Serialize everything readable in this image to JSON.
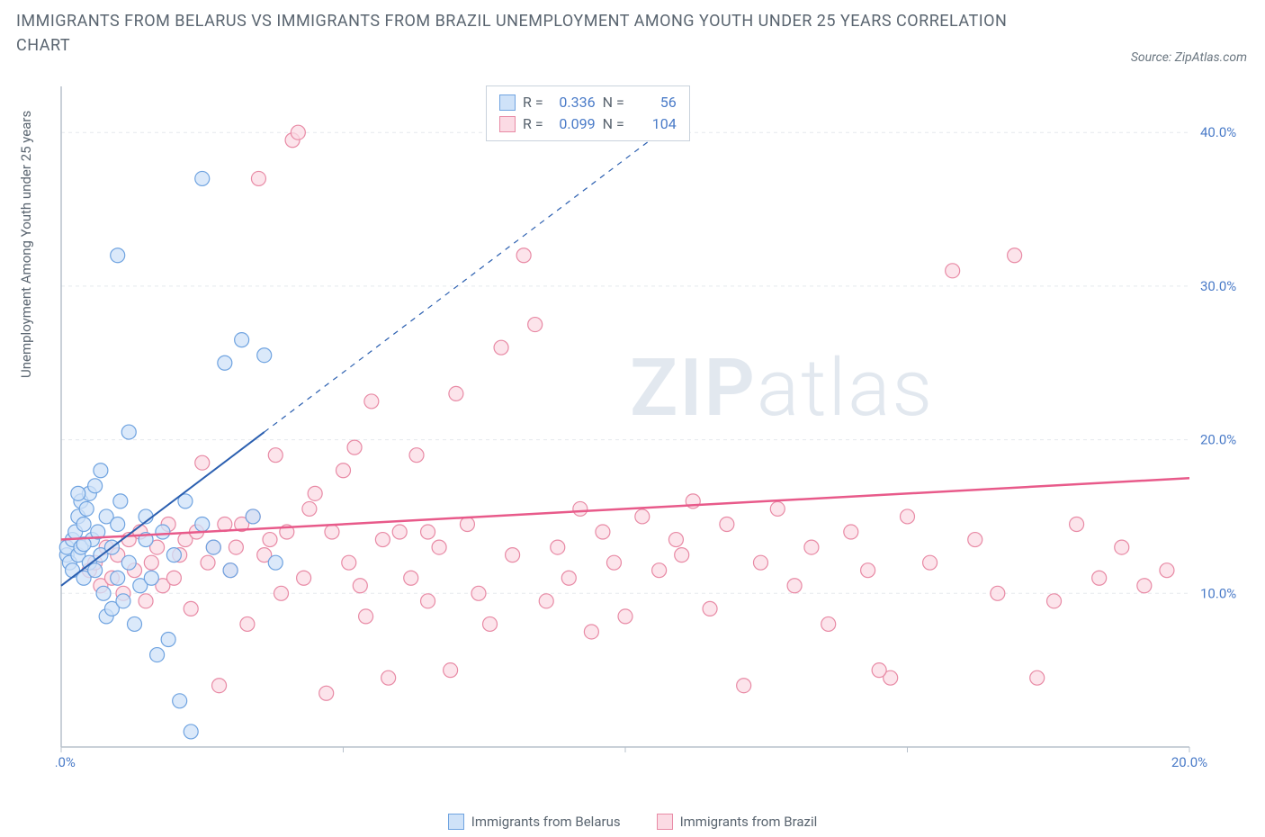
{
  "title": "IMMIGRANTS FROM BELARUS VS IMMIGRANTS FROM BRAZIL UNEMPLOYMENT AMONG YOUTH UNDER 25 YEARS CORRELATION CHART",
  "source": "Source: ZipAtlas.com",
  "y_axis_label": "Unemployment Among Youth under 25 years",
  "watermark_a": "ZIP",
  "watermark_b": "atlas",
  "chart": {
    "type": "scatter",
    "xlim": [
      0,
      20
    ],
    "ylim": [
      0,
      43
    ],
    "x_ticks": [
      0,
      5,
      10,
      15,
      20
    ],
    "x_tick_labels": [
      "0.0%",
      "",
      "",
      "",
      "20.0%"
    ],
    "y_ticks": [
      10,
      20,
      30,
      40
    ],
    "y_tick_labels": [
      "10.0%",
      "20.0%",
      "30.0%",
      "40.0%"
    ],
    "grid_color": "#e5e9ee",
    "axis_color": "#b7c0cb",
    "background": "#ffffff",
    "marker_radius": 8,
    "marker_stroke_width": 1.2,
    "series": [
      {
        "name": "Immigrants from Belarus",
        "fill": "#cfe2f8",
        "stroke": "#6fa3e0",
        "swatch_fill": "#cfe2f8",
        "swatch_stroke": "#6fa3e0",
        "r": "0.336",
        "n": "56",
        "trend": {
          "x1": 0,
          "y1": 10.5,
          "x2": 3.6,
          "y2": 20.5,
          "dashed_x2": 10.8,
          "dashed_y2": 40.5,
          "color": "#2b5fb0",
          "width": 2
        },
        "points": [
          [
            0.1,
            12.5
          ],
          [
            0.1,
            13.0
          ],
          [
            0.15,
            12.0
          ],
          [
            0.2,
            11.5
          ],
          [
            0.2,
            13.5
          ],
          [
            0.25,
            14.0
          ],
          [
            0.3,
            12.5
          ],
          [
            0.3,
            15.0
          ],
          [
            0.35,
            13.0
          ],
          [
            0.35,
            16.0
          ],
          [
            0.4,
            11.0
          ],
          [
            0.4,
            14.5
          ],
          [
            0.45,
            15.5
          ],
          [
            0.5,
            12.0
          ],
          [
            0.5,
            16.5
          ],
          [
            0.55,
            13.5
          ],
          [
            0.6,
            11.5
          ],
          [
            0.6,
            17.0
          ],
          [
            0.65,
            14.0
          ],
          [
            0.7,
            12.5
          ],
          [
            0.7,
            18.0
          ],
          [
            0.75,
            10.0
          ],
          [
            0.8,
            15.0
          ],
          [
            0.8,
            8.5
          ],
          [
            0.9,
            9.0
          ],
          [
            0.9,
            13.0
          ],
          [
            1.0,
            11.0
          ],
          [
            1.0,
            14.5
          ],
          [
            1.05,
            16.0
          ],
          [
            1.1,
            9.5
          ],
          [
            1.2,
            12.0
          ],
          [
            1.2,
            20.5
          ],
          [
            1.3,
            8.0
          ],
          [
            1.4,
            10.5
          ],
          [
            1.5,
            13.5
          ],
          [
            1.5,
            15.0
          ],
          [
            1.6,
            11.0
          ],
          [
            1.7,
            6.0
          ],
          [
            1.8,
            14.0
          ],
          [
            1.9,
            7.0
          ],
          [
            2.0,
            12.5
          ],
          [
            2.1,
            3.0
          ],
          [
            2.2,
            16.0
          ],
          [
            2.3,
            1.0
          ],
          [
            2.5,
            14.5
          ],
          [
            2.7,
            13.0
          ],
          [
            2.9,
            25.0
          ],
          [
            3.0,
            11.5
          ],
          [
            3.2,
            26.5
          ],
          [
            3.4,
            15.0
          ],
          [
            3.6,
            25.5
          ],
          [
            3.8,
            12.0
          ],
          [
            2.5,
            37.0
          ],
          [
            1.0,
            32.0
          ],
          [
            0.3,
            16.5
          ],
          [
            0.4,
            13.2
          ]
        ]
      },
      {
        "name": "Immigrants from Brazil",
        "fill": "#fbdbe4",
        "stroke": "#e88aa5",
        "swatch_fill": "#fbdbe4",
        "swatch_stroke": "#e88aa5",
        "r": "0.099",
        "n": "104",
        "trend": {
          "x1": 0,
          "y1": 13.5,
          "x2": 20,
          "y2": 17.5,
          "color": "#e85a8a",
          "width": 2.5
        },
        "points": [
          [
            0.5,
            11.5
          ],
          [
            0.6,
            12.0
          ],
          [
            0.7,
            10.5
          ],
          [
            0.8,
            13.0
          ],
          [
            0.9,
            11.0
          ],
          [
            1.0,
            12.5
          ],
          [
            1.1,
            10.0
          ],
          [
            1.2,
            13.5
          ],
          [
            1.3,
            11.5
          ],
          [
            1.4,
            14.0
          ],
          [
            1.5,
            9.5
          ],
          [
            1.6,
            12.0
          ],
          [
            1.7,
            13.0
          ],
          [
            1.8,
            10.5
          ],
          [
            1.9,
            14.5
          ],
          [
            2.0,
            11.0
          ],
          [
            2.1,
            12.5
          ],
          [
            2.2,
            13.5
          ],
          [
            2.3,
            9.0
          ],
          [
            2.4,
            14.0
          ],
          [
            2.5,
            18.5
          ],
          [
            2.6,
            12.0
          ],
          [
            2.7,
            13.0
          ],
          [
            2.8,
            4.0
          ],
          [
            2.9,
            14.5
          ],
          [
            3.0,
            11.5
          ],
          [
            3.1,
            13.0
          ],
          [
            3.2,
            14.5
          ],
          [
            3.3,
            8.0
          ],
          [
            3.4,
            15.0
          ],
          [
            3.5,
            37.0
          ],
          [
            3.6,
            12.5
          ],
          [
            3.7,
            13.5
          ],
          [
            3.8,
            19.0
          ],
          [
            3.9,
            10.0
          ],
          [
            4.0,
            14.0
          ],
          [
            4.1,
            39.5
          ],
          [
            4.2,
            40.0
          ],
          [
            4.3,
            11.0
          ],
          [
            4.4,
            15.5
          ],
          [
            4.5,
            16.5
          ],
          [
            4.7,
            3.5
          ],
          [
            4.8,
            14.0
          ],
          [
            5.0,
            18.0
          ],
          [
            5.1,
            12.0
          ],
          [
            5.2,
            19.5
          ],
          [
            5.4,
            8.5
          ],
          [
            5.5,
            22.5
          ],
          [
            5.7,
            13.5
          ],
          [
            5.8,
            4.5
          ],
          [
            6.0,
            14.0
          ],
          [
            6.2,
            11.0
          ],
          [
            6.3,
            19.0
          ],
          [
            6.5,
            9.5
          ],
          [
            6.7,
            13.0
          ],
          [
            6.9,
            5.0
          ],
          [
            7.0,
            23.0
          ],
          [
            7.2,
            14.5
          ],
          [
            7.4,
            10.0
          ],
          [
            7.6,
            8.0
          ],
          [
            7.8,
            26.0
          ],
          [
            8.0,
            12.5
          ],
          [
            8.2,
            32.0
          ],
          [
            8.4,
            27.5
          ],
          [
            8.6,
            9.5
          ],
          [
            8.8,
            13.0
          ],
          [
            9.0,
            11.0
          ],
          [
            9.2,
            15.5
          ],
          [
            9.4,
            7.5
          ],
          [
            9.6,
            14.0
          ],
          [
            9.8,
            12.0
          ],
          [
            10.0,
            8.5
          ],
          [
            10.3,
            15.0
          ],
          [
            10.6,
            11.5
          ],
          [
            10.9,
            13.5
          ],
          [
            11.2,
            16.0
          ],
          [
            11.5,
            9.0
          ],
          [
            11.8,
            14.5
          ],
          [
            12.1,
            4.0
          ],
          [
            12.4,
            12.0
          ],
          [
            12.7,
            15.5
          ],
          [
            13.0,
            10.5
          ],
          [
            13.3,
            13.0
          ],
          [
            13.6,
            8.0
          ],
          [
            14.0,
            14.0
          ],
          [
            14.3,
            11.5
          ],
          [
            14.7,
            4.5
          ],
          [
            15.0,
            15.0
          ],
          [
            15.4,
            12.0
          ],
          [
            15.8,
            31.0
          ],
          [
            16.2,
            13.5
          ],
          [
            16.6,
            10.0
          ],
          [
            16.9,
            32.0
          ],
          [
            17.3,
            4.5
          ],
          [
            17.6,
            9.5
          ],
          [
            18.0,
            14.5
          ],
          [
            18.4,
            11.0
          ],
          [
            18.8,
            13.0
          ],
          [
            19.2,
            10.5
          ],
          [
            19.6,
            11.5
          ],
          [
            14.5,
            5.0
          ],
          [
            11.0,
            12.5
          ],
          [
            6.5,
            14.0
          ],
          [
            5.3,
            10.5
          ]
        ]
      }
    ]
  },
  "legend": {
    "series_a": "Immigrants from Belarus",
    "series_b": "Immigrants from Brazil"
  },
  "stats_labels": {
    "r": "R =",
    "n": "N ="
  },
  "colors": {
    "text": "#5a6570",
    "link_blue": "#4a7bc8"
  }
}
